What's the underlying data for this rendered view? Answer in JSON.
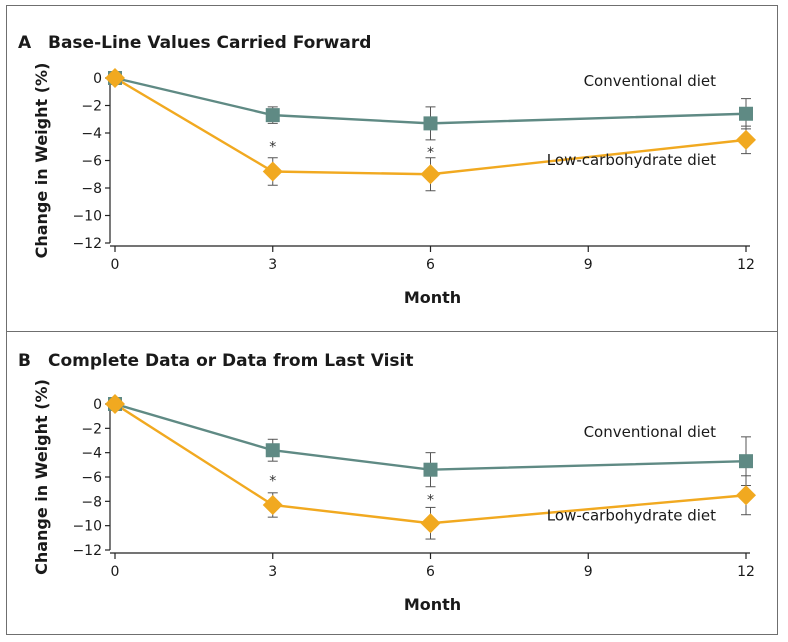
{
  "chart_data": [
    {
      "type": "line",
      "panel_letter": "A",
      "title": "Base-Line Values Carried Forward",
      "xlabel": "Month",
      "ylabel": "Change in Weight (%)",
      "x": [
        0,
        3,
        6,
        12
      ],
      "xticks": [
        0,
        3,
        6,
        9,
        12
      ],
      "yticks": [
        0,
        -2,
        -4,
        -6,
        -8,
        -10,
        -12
      ],
      "xlim": [
        0,
        12
      ],
      "ylim": [
        -12,
        0
      ],
      "grid": false,
      "series": [
        {
          "name": "Conventional diet",
          "color": "#5f8a84",
          "marker": "square",
          "values": [
            0,
            -2.7,
            -3.3,
            -2.6
          ],
          "error": [
            0,
            0.6,
            1.2,
            1.1
          ]
        },
        {
          "name": "Low-carbohydrate diet",
          "color": "#f1a920",
          "marker": "diamond",
          "values": [
            0,
            -6.8,
            -7.0,
            -4.5
          ],
          "error": [
            0,
            1.0,
            1.2,
            1.0
          ]
        }
      ],
      "annotations": [
        {
          "text": "*",
          "x": 3
        },
        {
          "text": "*",
          "x": 6
        }
      ]
    },
    {
      "type": "line",
      "panel_letter": "B",
      "title": "Complete Data or Data from Last Visit",
      "xlabel": "Month",
      "ylabel": "Change in Weight (%)",
      "x": [
        0,
        3,
        6,
        12
      ],
      "xticks": [
        0,
        3,
        6,
        9,
        12
      ],
      "yticks": [
        0,
        -2,
        -4,
        -6,
        -8,
        -10,
        -12
      ],
      "xlim": [
        0,
        12
      ],
      "ylim": [
        -12,
        0
      ],
      "grid": false,
      "series": [
        {
          "name": "Conventional diet",
          "color": "#5f8a84",
          "marker": "square",
          "values": [
            0,
            -3.8,
            -5.4,
            -4.7
          ],
          "error": [
            0,
            0.9,
            1.4,
            2.0
          ]
        },
        {
          "name": "Low-carbohydrate diet",
          "color": "#f1a920",
          "marker": "diamond",
          "values": [
            0,
            -8.3,
            -9.8,
            -7.5
          ],
          "error": [
            0,
            1.0,
            1.3,
            1.6
          ]
        }
      ],
      "annotations": [
        {
          "text": "*",
          "x": 3
        },
        {
          "text": "*",
          "x": 6
        }
      ]
    }
  ]
}
